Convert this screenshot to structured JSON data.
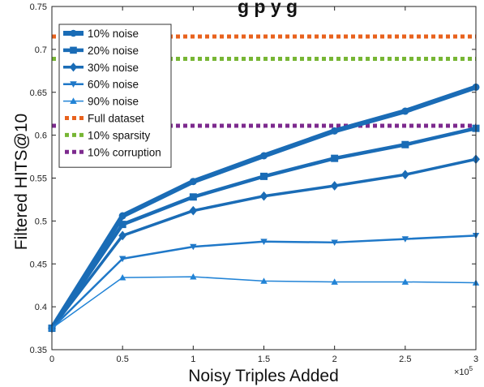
{
  "chart_data": {
    "type": "line",
    "title": "g... p... ... y ... g...",
    "title_visible_fragment": "g      p           y           g",
    "xlabel": "Noisy Triples Added",
    "ylabel": "Filtered HITS@10",
    "x_multiplier_label": "×10",
    "x_multiplier_exp": "5",
    "x_ticks": [
      "0",
      "0.5",
      "1",
      "1.5",
      "2",
      "2.5",
      "3"
    ],
    "y_ticks": [
      "0.35",
      "0.4",
      "0.45",
      "0.5",
      "0.55",
      "0.6",
      "0.65",
      "0.7",
      "0.75"
    ],
    "xlim": [
      0,
      300000
    ],
    "ylim": [
      0.35,
      0.75
    ],
    "x": [
      0,
      50000,
      100000,
      150000,
      200000,
      250000,
      300000
    ],
    "grid": false,
    "legend_position": "top-left",
    "series": [
      {
        "name": "10% noise",
        "marker": "circle",
        "color": "#1a6cb6",
        "width": 6,
        "values": [
          0.375,
          0.506,
          0.546,
          0.576,
          0.605,
          0.628,
          0.656
        ]
      },
      {
        "name": "20% noise",
        "marker": "square",
        "color": "#1a6cb6",
        "width": 4.5,
        "values": [
          0.375,
          0.496,
          0.528,
          0.552,
          0.573,
          0.589,
          0.608
        ]
      },
      {
        "name": "30% noise",
        "marker": "diamond",
        "color": "#1a6cb6",
        "width": 3.5,
        "values": [
          0.375,
          0.483,
          0.512,
          0.529,
          0.541,
          0.554,
          0.572
        ]
      },
      {
        "name": "60% noise",
        "marker": "triangle-down",
        "color": "#1f78c8",
        "width": 2.5,
        "values": [
          0.375,
          0.456,
          0.47,
          0.476,
          0.475,
          0.479,
          0.483
        ]
      },
      {
        "name": "90% noise",
        "marker": "triangle-up",
        "color": "#2183d6",
        "width": 1.5,
        "values": [
          0.375,
          0.434,
          0.435,
          0.43,
          0.429,
          0.429,
          0.428
        ]
      }
    ],
    "reference_lines": [
      {
        "name": "Full dataset",
        "value": 0.715,
        "color": "#e8621d"
      },
      {
        "name": "10% sparsity",
        "value": 0.689,
        "color": "#77b634"
      },
      {
        "name": "10% corruption",
        "value": 0.611,
        "color": "#7d2a8e"
      }
    ]
  }
}
